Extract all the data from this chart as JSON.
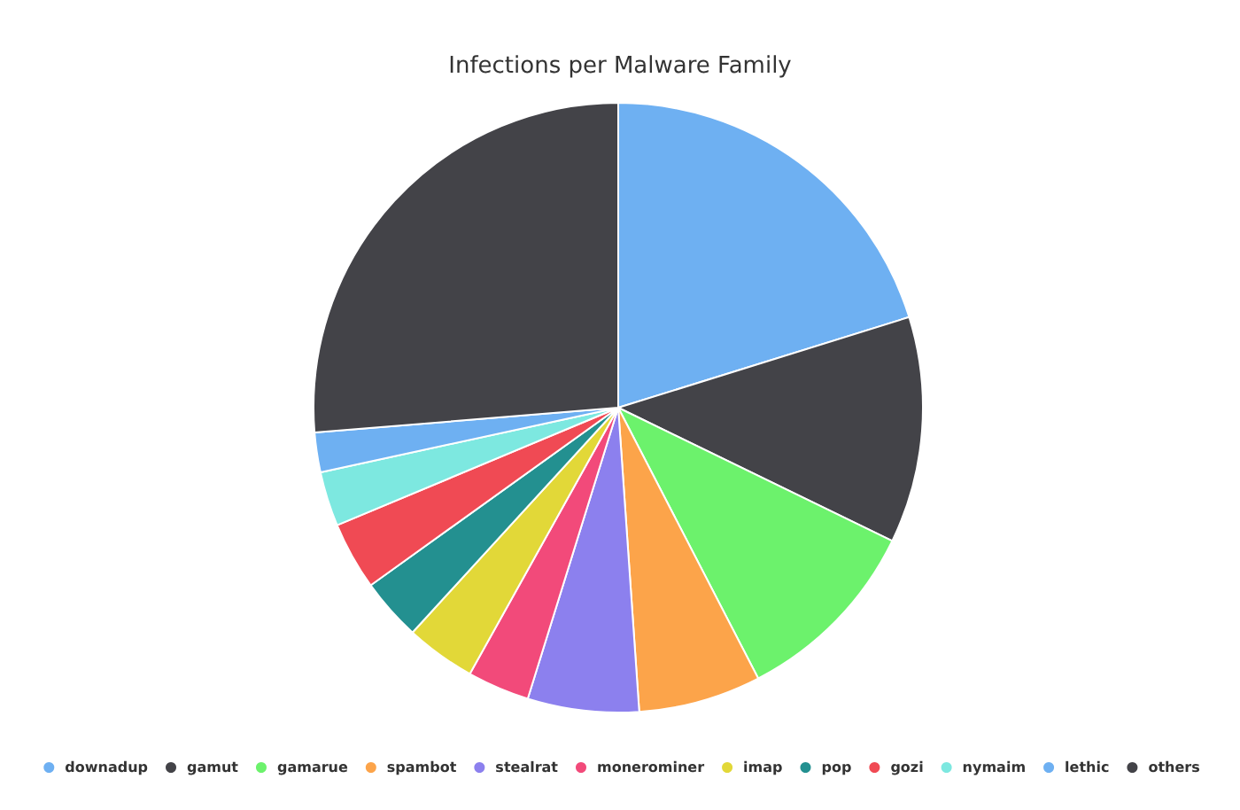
{
  "chart_data": {
    "type": "pie",
    "title": "Infections per Malware Family",
    "categories": [
      "downadup",
      "gamut",
      "gamarue",
      "spambot",
      "stealrat",
      "monerominer",
      "imap",
      "pop",
      "gozi",
      "nymaim",
      "lethic",
      "others"
    ],
    "values": [
      20.2,
      12.0,
      10.2,
      6.5,
      5.9,
      3.3,
      3.7,
      3.3,
      3.6,
      2.9,
      2.1,
      26.3
    ],
    "colors": [
      "#6eb0f2",
      "#434348",
      "#6cf26c",
      "#fca44a",
      "#8c80ee",
      "#f24a7a",
      "#e2d838",
      "#239090",
      "#f04a54",
      "#7de8e0",
      "#6eb0f2",
      "#434348"
    ],
    "legend": "bottom"
  }
}
